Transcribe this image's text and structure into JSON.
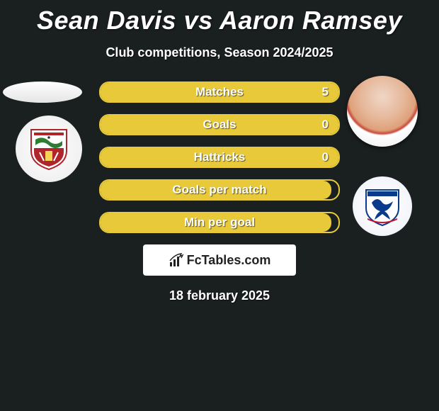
{
  "title": "Sean Davis vs Aaron Ramsey",
  "subtitle": "Club competitions, Season 2024/2025",
  "date": "18 february 2025",
  "footer_brand": "FcTables.com",
  "colors": {
    "background": "#1a1f1f",
    "bar_border": "#e7c93a",
    "bar_fill": "#e7c93a",
    "text": "#ffffff"
  },
  "players": {
    "left": {
      "name": "Sean Davis",
      "club": "Bristol City"
    },
    "right": {
      "name": "Aaron Ramsey",
      "club": "Cardiff City"
    }
  },
  "bars": [
    {
      "label": "Matches",
      "value": "5",
      "fill_pct": 100
    },
    {
      "label": "Goals",
      "value": "0",
      "fill_pct": 100
    },
    {
      "label": "Hattricks",
      "value": "0",
      "fill_pct": 100
    },
    {
      "label": "Goals per match",
      "value": "",
      "fill_pct": 97
    },
    {
      "label": "Min per goal",
      "value": "",
      "fill_pct": 97
    }
  ]
}
